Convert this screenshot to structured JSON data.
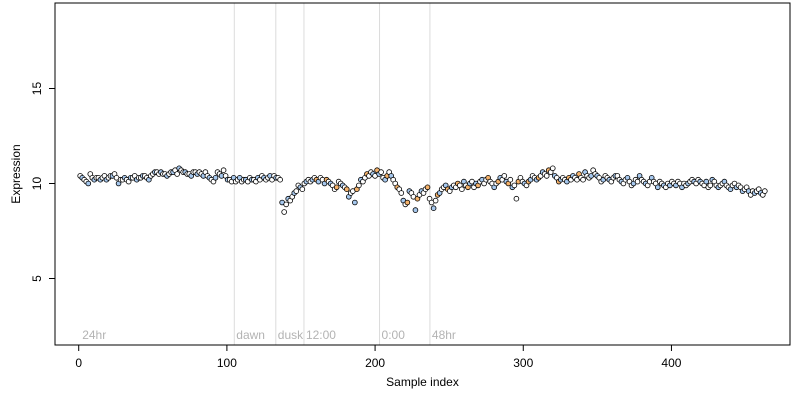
{
  "chart_data": {
    "type": "scatter",
    "title": "",
    "xlabel": "Sample index",
    "ylabel": "Expression",
    "xlim": [
      -16,
      480
    ],
    "ylim": [
      1.5,
      19.5
    ],
    "x_ticks": [
      0,
      100,
      200,
      300,
      400
    ],
    "y_ticks": [
      5,
      10,
      15
    ],
    "grid": false,
    "legend": "none",
    "colors": {
      "point_edge": "#000000",
      "blue_fill": "#a6c8ee",
      "orange_fill": "#f4b26b",
      "white_fill": "#ffffff",
      "separator": "#dcdcdc",
      "segment_label": "#b3b3b3"
    },
    "segments": [
      {
        "label": "24hr",
        "x_start": 1
      },
      {
        "label": "dawn",
        "x_start": 105
      },
      {
        "label": "dusk",
        "x_start": 133
      },
      {
        "label": "12:00",
        "x_start": 152
      },
      {
        "label": "0:00",
        "x_start": 203
      },
      {
        "label": "48hr",
        "x_start": 237
      }
    ],
    "series": [
      {
        "values": [
          10.4,
          10.3,
          10.2,
          10.1,
          10.0,
          10.5,
          10.3,
          10.2,
          10.3,
          10.3,
          10.2,
          10.3,
          10.4,
          10.2,
          10.3,
          10.4,
          10.4,
          10.5,
          10.3,
          10.0,
          10.2,
          10.2,
          10.3,
          10.2,
          10.1,
          10.3,
          10.3,
          10.4,
          10.2,
          10.3,
          10.3,
          10.4,
          10.4,
          10.3,
          10.2,
          10.4,
          10.5,
          10.6,
          10.6,
          10.5,
          10.6,
          10.5,
          10.5,
          10.4,
          10.5,
          10.6,
          10.6,
          10.7,
          10.5,
          10.8,
          10.7,
          10.6,
          10.6,
          10.5,
          10.5,
          10.4,
          10.6,
          10.6,
          10.5,
          10.6,
          10.5,
          10.4,
          10.6,
          10.4,
          10.3,
          10.2,
          10.1,
          10.3,
          10.6,
          10.5,
          10.4,
          10.7,
          10.4,
          10.2,
          10.2,
          10.1,
          10.3,
          10.1,
          10.2,
          10.3,
          10.1,
          10.2,
          10.2,
          10.1,
          10.3,
          10.2,
          10.2,
          10.1,
          10.3,
          10.2,
          10.4,
          10.3,
          10.2,
          10.3,
          10.4,
          10.2,
          10.4,
          10.3,
          10.3,
          10.2,
          9.0,
          8.5,
          8.9,
          9.2,
          9.1,
          9.3,
          9.5,
          9.6,
          9.9,
          9.8,
          9.7,
          10.0,
          10.1,
          10.2,
          10.1,
          10.2,
          10.3,
          10.2,
          10.1,
          10.3,
          10.2,
          10.0,
          10.2,
          10.1,
          10.0,
          9.9,
          9.7,
          9.8,
          10.1,
          10.0,
          9.9,
          9.8,
          9.7,
          9.3,
          9.5,
          9.6,
          9.0,
          9.7,
          9.9,
          10.2,
          10.1,
          10.3,
          10.5,
          10.4,
          10.6,
          10.5,
          10.4,
          10.7,
          10.5,
          10.6,
          10.3,
          10.2,
          10.4,
          10.6,
          10.4,
          10.2,
          10.0,
          9.8,
          9.7,
          9.5,
          9.1,
          8.9,
          9.0,
          9.6,
          9.5,
          9.3,
          8.6,
          9.2,
          9.4,
          9.6,
          9.5,
          9.7,
          9.8,
          9.2,
          9.0,
          8.7,
          9.1,
          9.4,
          9.5,
          9.7,
          9.8,
          9.9,
          9.7,
          9.6,
          9.8,
          9.9,
          9.8,
          10.0,
          9.9,
          9.7,
          10.1,
          9.9,
          9.8,
          10.0,
          10.1,
          9.8,
          10.0,
          9.9,
          10.1,
          10.2,
          10.0,
          10.2,
          10.3,
          10.1,
          10.0,
          9.8,
          10.0,
          10.1,
          10.3,
          10.2,
          10.4,
          10.1,
          10.0,
          10.2,
          9.8,
          9.9,
          9.2,
          10.1,
          10.3,
          10.1,
          10.0,
          9.9,
          10.1,
          10.2,
          10.4,
          10.3,
          10.2,
          10.3,
          10.4,
          10.6,
          10.5,
          10.4,
          10.7,
          10.6,
          10.8,
          10.4,
          10.3,
          10.1,
          10.2,
          10.3,
          10.2,
          10.1,
          10.3,
          10.2,
          10.4,
          10.3,
          10.2,
          10.5,
          10.3,
          10.2,
          10.6,
          10.4,
          10.3,
          10.4,
          10.7,
          10.5,
          10.4,
          10.3,
          10.1,
          10.2,
          10.4,
          10.3,
          10.2,
          10.1,
          10.3,
          10.4,
          10.4,
          10.2,
          10.1,
          10.0,
          10.2,
          10.3,
          10.1,
          9.9,
          10.0,
          10.2,
          10.1,
          10.4,
          10.2,
          10.1,
          10.0,
          9.9,
          10.1,
          10.3,
          10.1,
          10.0,
          9.8,
          10.1,
          10.0,
          9.9,
          9.8,
          10.0,
          9.9,
          10.1,
          10.0,
          9.9,
          10.1,
          10.0,
          9.8,
          10.0,
          9.9,
          10.0,
          10.1,
          10.2,
          10.1,
          10.0,
          10.2,
          10.1,
          10.0,
          9.9,
          10.1,
          9.8,
          9.9,
          10.2,
          10.1,
          9.9,
          9.8,
          9.9,
          10.0,
          10.1,
          9.9,
          9.8,
          9.7,
          9.9,
          10.0,
          9.8,
          9.9,
          9.8,
          9.6,
          9.7,
          9.8,
          9.6,
          9.4,
          9.6,
          9.5,
          9.6,
          9.7,
          9.5,
          9.4,
          9.6
        ]
      }
    ]
  }
}
